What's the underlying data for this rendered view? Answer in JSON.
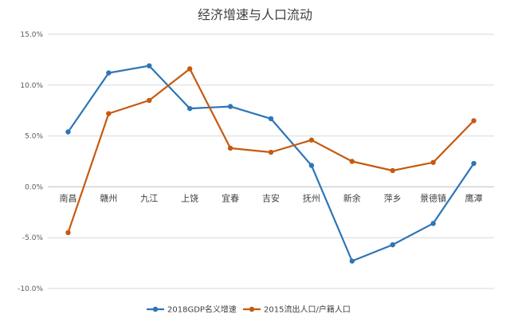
{
  "chart_data": {
    "type": "line",
    "title": "经济增速与人口流动",
    "categories": [
      "南昌",
      "赣州",
      "九江",
      "上饶",
      "宜春",
      "吉安",
      "抚州",
      "新余",
      "萍乡",
      "景德镇",
      "鹰潭"
    ],
    "series": [
      {
        "name": "2018GDP名义增速",
        "color": "#2E75B6",
        "values": [
          5.4,
          11.2,
          11.9,
          7.7,
          7.9,
          6.7,
          2.1,
          -7.3,
          -5.7,
          -3.6,
          2.3
        ]
      },
      {
        "name": "2015流出人口/户籍人口",
        "color": "#C55A11",
        "values": [
          -4.5,
          7.2,
          8.5,
          11.6,
          3.8,
          3.4,
          4.6,
          2.5,
          1.6,
          2.4,
          6.5
        ]
      }
    ],
    "ylim": [
      -10,
      15
    ],
    "yticks": [
      15,
      10,
      5,
      0,
      -5,
      -10
    ],
    "ytick_labels": [
      "15.0%",
      "10.0%",
      "5.0%",
      "0.0%",
      "-5.0%",
      "-10.0%"
    ],
    "grid": true,
    "legend_position": "bottom"
  }
}
